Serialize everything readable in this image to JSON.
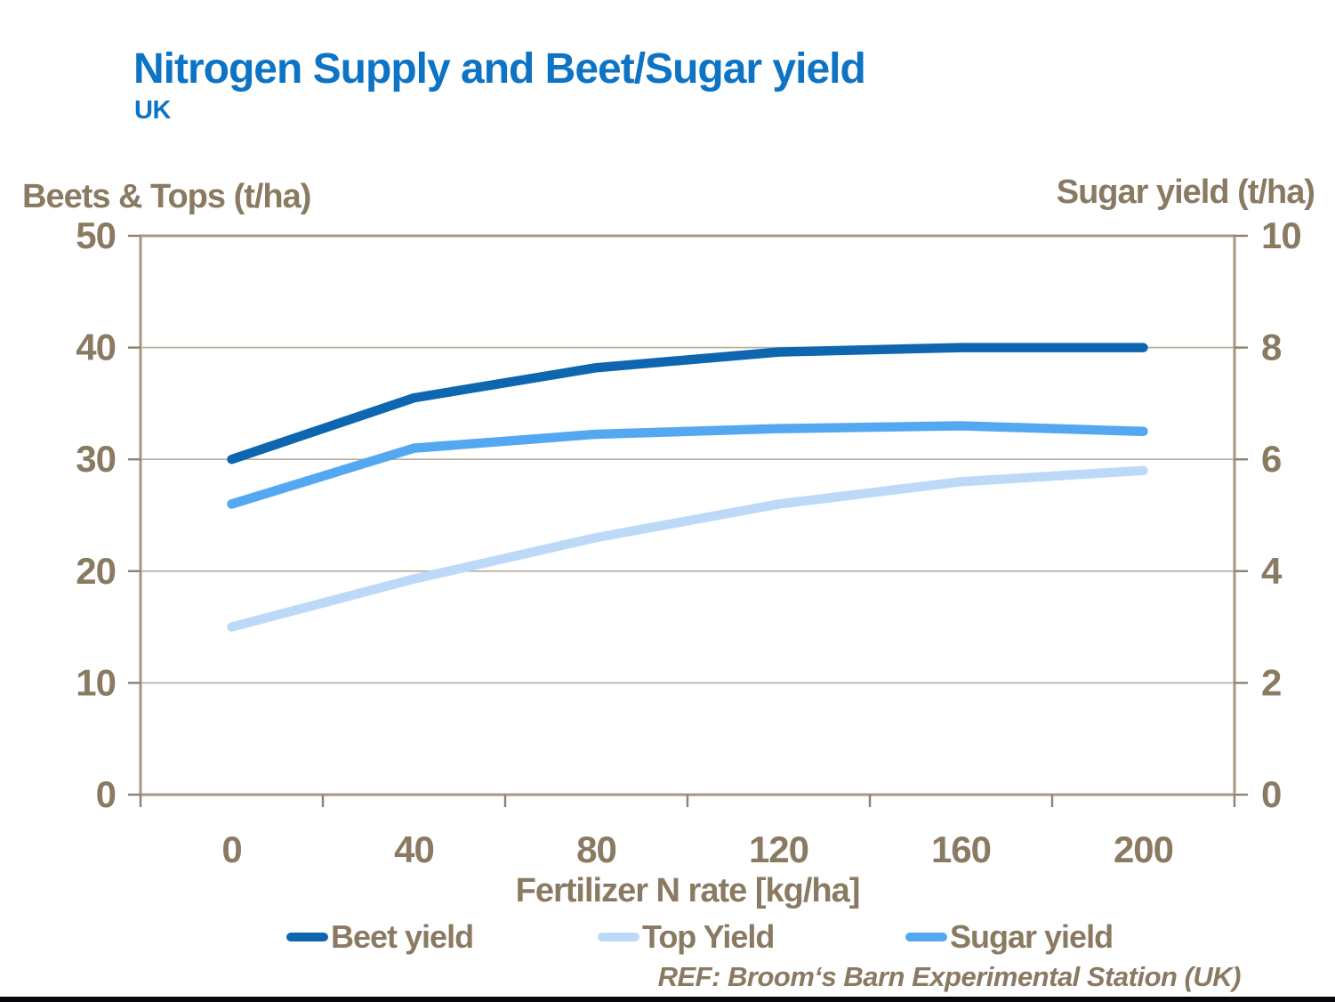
{
  "chart_data": {
    "type": "line",
    "title": "Nitrogen Supply and Beet/Sugar yield",
    "subtitle": "UK",
    "xlabel": "Fertilizer N rate [kg/ha]",
    "categories": [
      0,
      40,
      80,
      120,
      160,
      200
    ],
    "left_axis": {
      "label": "Beets & Tops (t/ha)",
      "ticks": [
        0,
        10,
        20,
        30,
        40,
        50
      ],
      "range": [
        0,
        50
      ]
    },
    "right_axis": {
      "label": "Sugar yield (t/ha)",
      "ticks": [
        0,
        2,
        4,
        6,
        8,
        10
      ],
      "range": [
        0,
        10
      ]
    },
    "series": [
      {
        "name": "Beet yield",
        "axis": "left",
        "color": "#0e66b0",
        "values": [
          30,
          35.5,
          38.2,
          39.6,
          40,
          40
        ]
      },
      {
        "name": "Top Yield",
        "axis": "left",
        "color": "#bcdaf8",
        "values": [
          15,
          19.3,
          23,
          26,
          28,
          29
        ]
      },
      {
        "name": "Sugar yield",
        "axis": "right",
        "color": "#54a8f1",
        "values": [
          5.2,
          6.2,
          6.45,
          6.55,
          6.6,
          6.5
        ]
      }
    ],
    "legend_position": "bottom",
    "grid": "horizontal",
    "colors": {
      "frame": "#a59784",
      "gridline": "#b9ac9b",
      "tick": "#8f8170",
      "text": "#8a7a62",
      "title": "#0d73c5"
    },
    "ref": "REF: Broom‘s Barn Experimental Station (UK)"
  }
}
